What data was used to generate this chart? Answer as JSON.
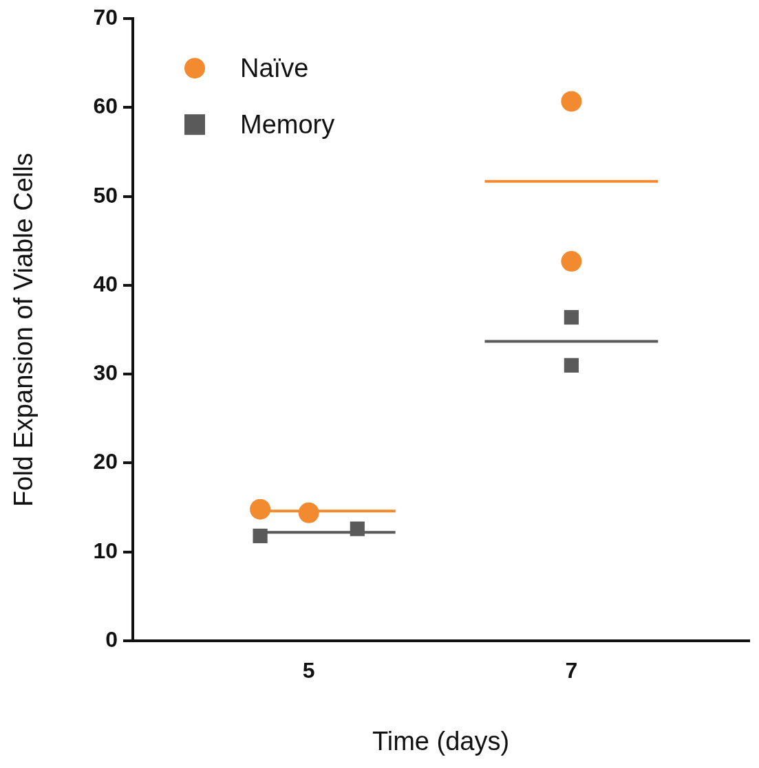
{
  "chart_data": {
    "type": "scatter",
    "xlabel": "Time (days)",
    "ylabel": "Fold Expansion of Viable Cells",
    "xlim": [
      3.66,
      8.35
    ],
    "xticks": [
      5,
      7
    ],
    "ylim": [
      0,
      70
    ],
    "yticks": [
      0,
      10,
      20,
      30,
      40,
      50,
      60,
      70
    ],
    "legend": "top left",
    "series": [
      {
        "name": "Naïve",
        "color": "#f28a30",
        "marker": "circle",
        "x": [
          4.63,
          5.0,
          7.0,
          7.0
        ],
        "values": [
          14.8,
          14.4,
          60.7,
          42.7
        ]
      },
      {
        "name": "Memory",
        "color": "#5a5a5a",
        "marker": "square",
        "x": [
          4.63,
          5.37,
          7.0,
          7.0
        ],
        "values": [
          11.8,
          12.6,
          36.4,
          31.0
        ]
      },
      {
        "type": "line",
        "color": "#f28a30",
        "x": [
          4.63,
          5.66
        ],
        "values": [
          14.6,
          14.6
        ]
      },
      {
        "type": "line",
        "color": "#5a5a5a",
        "x": [
          4.63,
          5.66
        ],
        "values": [
          12.2,
          12.2
        ]
      },
      {
        "type": "line",
        "color": "#f28a30",
        "x": [
          6.34,
          7.66
        ],
        "values": [
          51.7,
          51.7
        ]
      },
      {
        "type": "line",
        "color": "#5a5a5a",
        "x": [
          6.34,
          7.66
        ],
        "values": [
          33.7,
          33.7
        ]
      }
    ]
  }
}
